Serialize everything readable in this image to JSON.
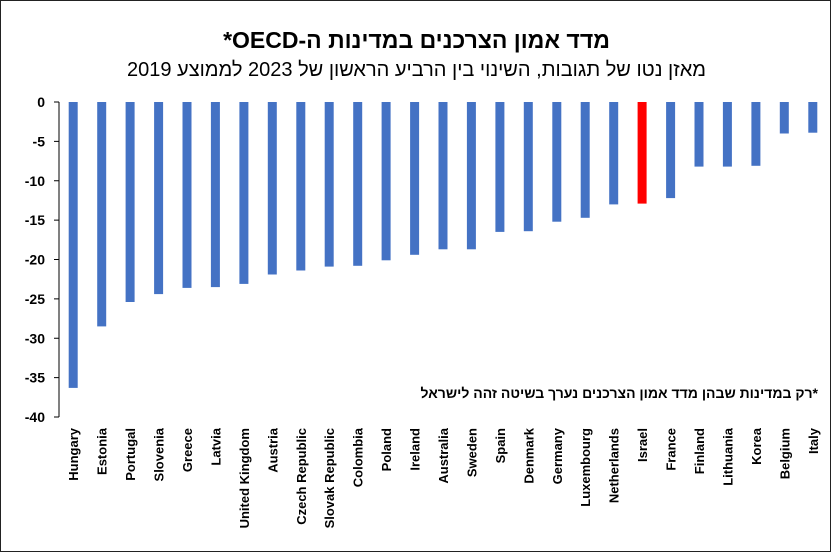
{
  "chart_data": {
    "type": "bar",
    "title": "מדד אמון הצרכנים במדינות ה-OECD*",
    "subtitle": "מאזן נטו של תגובות, השינוי בין הרביע הראשון של 2023 לממוצע 2019",
    "footnote": "*רק במדינות שבהן מדד אמון הצרכנים נערך בשיטה זהה לישראל",
    "ylim": [
      -40,
      0
    ],
    "yticks": [
      0,
      -5,
      -10,
      -15,
      -20,
      -25,
      -30,
      -35,
      -40
    ],
    "grid": false,
    "legend": "none",
    "colors": {
      "default": "#4472C4",
      "highlight": "#FF0000"
    },
    "highlight": "Israel",
    "categories": [
      "Hungary",
      "Estonia",
      "Portugal",
      "Slovenia",
      "Greece",
      "Latvia",
      "United Kingdom",
      "Austria",
      "Czech Republic",
      "Slovak Republic",
      "Colombia",
      "Poland",
      "Ireland",
      "Australia",
      "Sweden",
      "Spain",
      "Denmark",
      "Germany",
      "Luxembourg",
      "Netherlands",
      "Israel",
      "France",
      "Finland",
      "Lithuania",
      "Korea",
      "Belgium",
      "Italy"
    ],
    "values": [
      -36.3,
      -28.5,
      -25.4,
      -24.4,
      -23.6,
      -23.5,
      -23.1,
      -21.9,
      -21.4,
      -20.9,
      -20.8,
      -20.1,
      -19.4,
      -18.7,
      -18.7,
      -16.5,
      -16.4,
      -15.2,
      -14.7,
      -13.0,
      -12.9,
      -12.2,
      -8.2,
      -8.2,
      -8.1,
      -4.0,
      -3.9
    ]
  }
}
